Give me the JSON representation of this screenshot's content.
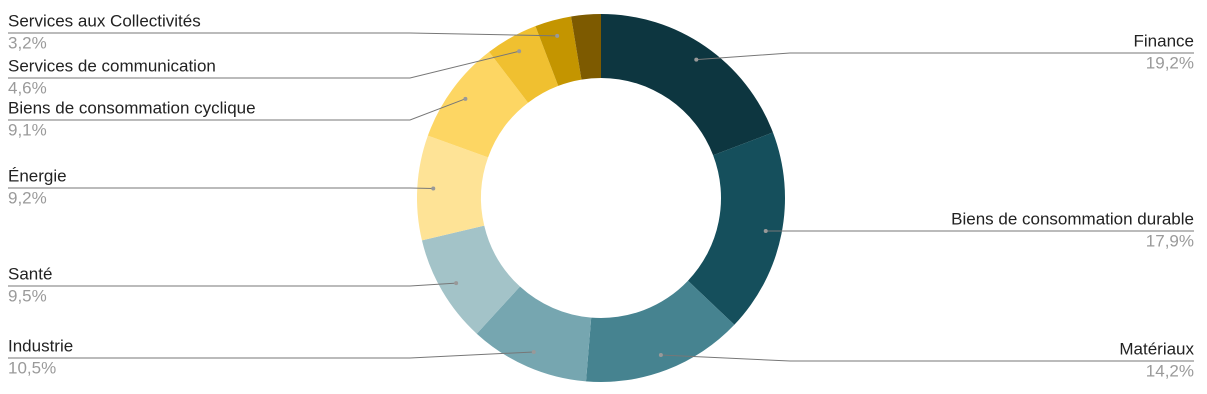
{
  "chart_data": {
    "type": "donut",
    "categories": [
      "Finance",
      "Biens de consommation durable",
      "Matériaux",
      "Industrie",
      "Santé",
      "Énergie",
      "Biens de consommation cyclique",
      "Services de communication",
      "Services aux Collectivités",
      null
    ],
    "values": [
      19.2,
      17.9,
      14.2,
      10.5,
      9.5,
      9.2,
      9.1,
      4.6,
      3.2,
      2.6
    ],
    "value_labels": [
      "19,2%",
      "17,9%",
      "14,2%",
      "10,5%",
      "9,5%",
      "9,2%",
      "9,1%",
      "4,6%",
      "3,2%",
      null
    ],
    "colors": [
      "#0d3640",
      "#154f5c",
      "#468390",
      "#76a6b0",
      "#a3c3c8",
      "#fee396",
      "#fdd663",
      "#f0c030",
      "#c49500",
      "#7d5a00"
    ]
  }
}
